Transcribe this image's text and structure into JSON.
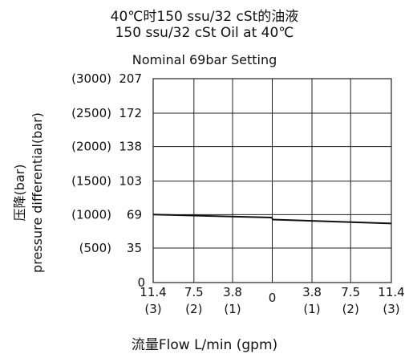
{
  "chart_data": {
    "type": "line",
    "title_lines": [
      "40℃时150 ssu/32 cSt的油液",
      "150 ssu/32 cSt Oil at 40℃",
      "Nominal 69bar Setting"
    ],
    "xlabel": "流量Flow  L/min (gpm)",
    "ylabel_lines": [
      "压降(bar)",
      "pressure differential(bar)"
    ],
    "xlim": [
      -11.4,
      11.4
    ],
    "ylim": [
      0,
      207
    ],
    "x_ticks": [
      -11.4,
      -7.5,
      -3.8,
      0,
      3.8,
      7.5,
      11.4
    ],
    "x_tick_labels": [
      "11.4",
      "7.5",
      "3.8",
      "0",
      "3.8",
      "7.5",
      "11.4"
    ],
    "x_tick_sublabels": [
      "(3)",
      "(2)",
      "(1)",
      "",
      "(1)",
      "(2)",
      "(3)"
    ],
    "y_ticks": [
      0,
      35,
      69,
      103,
      138,
      172,
      207
    ],
    "y_tick_labels": [
      "0",
      "35",
      "69",
      "103",
      "138",
      "172",
      "207"
    ],
    "y_tick_sublabels": [
      "",
      "(500)",
      "(1000)",
      "(1500)",
      "(2000)",
      "(2500)",
      "(3000)"
    ],
    "grid": true,
    "series": [
      {
        "color": "#111111",
        "x": [
          -11.4,
          -0.05,
          0.05,
          11.4
        ],
        "y": [
          69,
          66,
          64,
          60
        ]
      }
    ]
  }
}
